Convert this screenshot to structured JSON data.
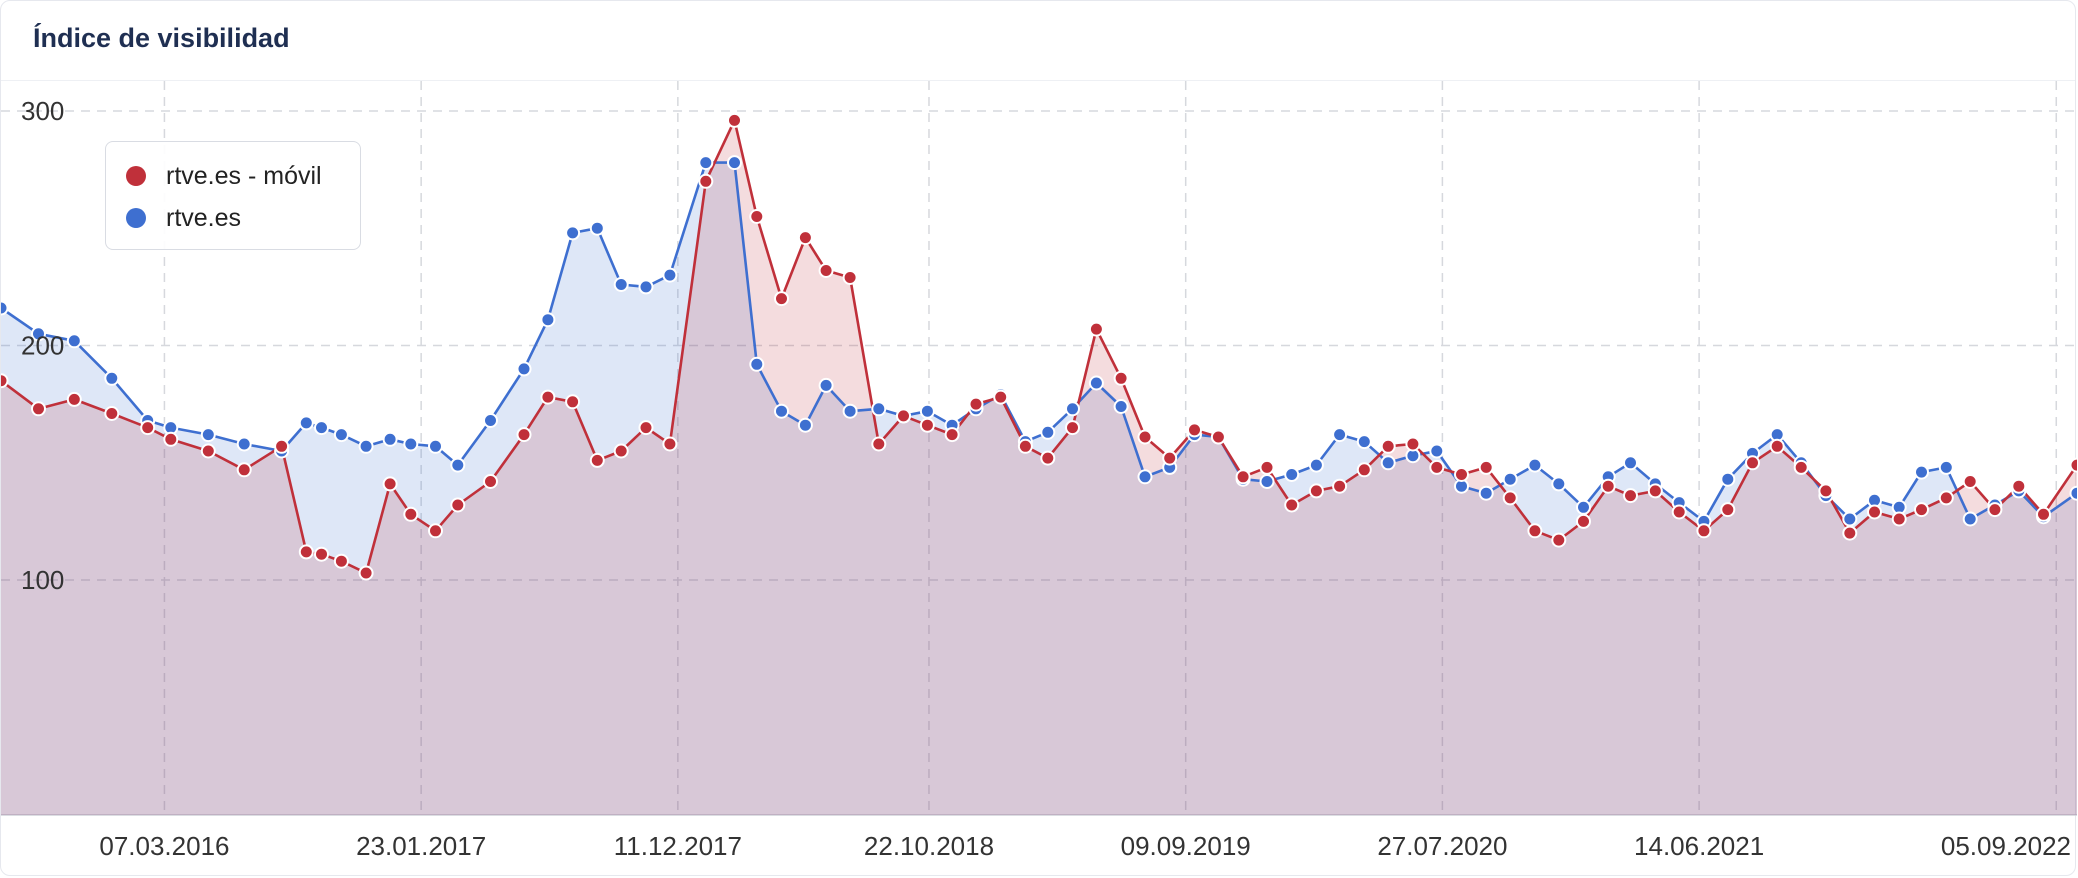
{
  "card": {
    "title": "Índice de visibilidad"
  },
  "colors": {
    "mobile": "#c0303a",
    "desktop": "#3e6fd0"
  },
  "legend": {
    "items": [
      {
        "label": "rtve.es - móvil",
        "color": "#c0303a"
      },
      {
        "label": "rtve.es",
        "color": "#3e6fd0"
      }
    ]
  },
  "chart_data": {
    "type": "area",
    "xlabel": "",
    "ylabel": "",
    "x_range": [
      "2015-08-15",
      "2022-10-01"
    ],
    "xticks": [
      "2016-03-07",
      "2017-01-23",
      "2017-12-11",
      "2018-10-22",
      "2019-09-09",
      "2020-07-27",
      "2021-06-14",
      "2022-09-05"
    ],
    "xtick_labels": [
      "07.03.2016",
      "23.01.2017",
      "11.12.2017",
      "22.10.2018",
      "09.09.2019",
      "27.07.2020",
      "14.06.2021",
      "05.09.2022"
    ],
    "yticks": [
      100,
      200,
      300
    ],
    "ylim": [
      0,
      315
    ],
    "grid": true,
    "legend_position": "top-left",
    "series": [
      {
        "name": "rtve.es - móvil",
        "color": "#c0303a",
        "x": [
          "2015-08-15",
          "2015-10-01",
          "2015-11-15",
          "2016-01-01",
          "2016-02-15",
          "2016-03-15",
          "2016-05-01",
          "2016-06-15",
          "2016-08-01",
          "2016-09-01",
          "2016-09-20",
          "2016-10-15",
          "2016-11-15",
          "2016-12-15",
          "2017-01-10",
          "2017-02-10",
          "2017-03-10",
          "2017-04-20",
          "2017-06-01",
          "2017-07-01",
          "2017-08-01",
          "2017-09-01",
          "2017-10-01",
          "2017-11-01",
          "2017-12-01",
          "2018-01-15",
          "2018-02-20",
          "2018-03-20",
          "2018-04-20",
          "2018-05-20",
          "2018-06-15",
          "2018-07-15",
          "2018-08-20",
          "2018-09-20",
          "2018-10-20",
          "2018-11-20",
          "2018-12-20",
          "2019-01-20",
          "2019-02-20",
          "2019-03-20",
          "2019-04-20",
          "2019-05-20",
          "2019-06-20",
          "2019-07-20",
          "2019-08-20",
          "2019-09-20",
          "2019-10-20",
          "2019-11-20",
          "2019-12-20",
          "2020-01-20",
          "2020-02-20",
          "2020-03-20",
          "2020-04-20",
          "2020-05-20",
          "2020-06-20",
          "2020-07-20",
          "2020-08-20",
          "2020-09-20",
          "2020-10-20",
          "2020-11-20",
          "2020-12-20",
          "2021-01-20",
          "2021-02-20",
          "2021-03-20",
          "2021-04-20",
          "2021-05-20",
          "2021-06-20",
          "2021-07-20",
          "2021-08-20",
          "2021-09-20",
          "2021-10-20",
          "2021-11-20",
          "2021-12-20",
          "2022-01-20",
          "2022-02-20",
          "2022-03-20",
          "2022-04-20",
          "2022-05-20",
          "2022-06-20",
          "2022-07-20",
          "2022-08-20",
          "2022-10-01"
        ],
        "values": [
          185,
          173,
          177,
          171,
          165,
          160,
          155,
          147,
          157,
          112,
          111,
          108,
          103,
          141,
          128,
          121,
          132,
          142,
          162,
          178,
          176,
          151,
          155,
          165,
          158,
          270,
          296,
          255,
          220,
          246,
          232,
          229,
          158,
          170,
          166,
          162,
          175,
          178,
          157,
          152,
          165,
          207,
          186,
          161,
          152,
          164,
          161,
          144,
          148,
          132,
          138,
          140,
          147,
          157,
          158,
          148,
          145,
          148,
          135,
          121,
          117,
          125,
          140,
          136,
          138,
          129,
          121,
          130,
          150,
          157,
          148,
          138,
          120,
          129,
          126,
          130,
          135,
          142,
          130,
          140,
          128,
          149
        ],
        "points": [
          185,
          173,
          177,
          171,
          165,
          160,
          155,
          147,
          157,
          112,
          111,
          108,
          103,
          141,
          128,
          121,
          132,
          142,
          162,
          178,
          176,
          151,
          155,
          165,
          158,
          270,
          296,
          255,
          220,
          246,
          232,
          229,
          158,
          170,
          166,
          162,
          175,
          178,
          157,
          152,
          165,
          207,
          186,
          161,
          152,
          164,
          161,
          144,
          148,
          132,
          138,
          140,
          147,
          157,
          158,
          148,
          145,
          148,
          135,
          121,
          117,
          125,
          140,
          136,
          138,
          129,
          121,
          130,
          150,
          157,
          148,
          138,
          120,
          129,
          126,
          130,
          135,
          142,
          130,
          140,
          128,
          149
        ]
      },
      {
        "name": "rtve.es",
        "color": "#3e6fd0",
        "x": [
          "2015-08-15",
          "2015-10-01",
          "2015-11-15",
          "2016-01-01",
          "2016-02-15",
          "2016-03-15",
          "2016-05-01",
          "2016-06-15",
          "2016-08-01",
          "2016-09-01",
          "2016-09-20",
          "2016-10-15",
          "2016-11-15",
          "2016-12-15",
          "2017-01-10",
          "2017-02-10",
          "2017-03-10",
          "2017-04-20",
          "2017-06-01",
          "2017-07-01",
          "2017-08-01",
          "2017-09-01",
          "2017-10-01",
          "2017-11-01",
          "2017-12-01",
          "2018-01-15",
          "2018-02-20",
          "2018-03-20",
          "2018-04-20",
          "2018-05-20",
          "2018-06-15",
          "2018-07-15",
          "2018-08-20",
          "2018-09-20",
          "2018-10-20",
          "2018-11-20",
          "2018-12-20",
          "2019-01-20",
          "2019-02-20",
          "2019-03-20",
          "2019-04-20",
          "2019-05-20",
          "2019-06-20",
          "2019-07-20",
          "2019-08-20",
          "2019-09-20",
          "2019-10-20",
          "2019-11-20",
          "2019-12-20",
          "2020-01-20",
          "2020-02-20",
          "2020-03-20",
          "2020-04-20",
          "2020-05-20",
          "2020-06-20",
          "2020-07-20",
          "2020-08-20",
          "2020-09-20",
          "2020-10-20",
          "2020-11-20",
          "2020-12-20",
          "2021-01-20",
          "2021-02-20",
          "2021-03-20",
          "2021-04-20",
          "2021-05-20",
          "2021-06-20",
          "2021-07-20",
          "2021-08-20",
          "2021-09-20",
          "2021-10-20",
          "2021-11-20",
          "2021-12-20",
          "2022-01-20",
          "2022-02-20",
          "2022-03-20",
          "2022-04-20",
          "2022-05-20",
          "2022-06-20",
          "2022-07-20",
          "2022-08-20",
          "2022-10-01"
        ],
        "values": [
          216,
          205,
          202,
          186,
          168,
          165,
          162,
          158,
          155,
          167,
          165,
          162,
          157,
          160,
          158,
          157,
          149,
          168,
          190,
          211,
          248,
          250,
          226,
          225,
          230,
          278,
          278,
          192,
          172,
          166,
          183,
          172,
          173,
          170,
          172,
          166,
          173,
          179,
          159,
          163,
          173,
          184,
          174,
          144,
          148,
          162,
          161,
          143,
          142,
          145,
          149,
          162,
          159,
          150,
          153,
          155,
          140,
          137,
          143,
          149,
          141,
          131,
          144,
          150,
          141,
          133,
          125,
          143,
          154,
          162,
          150,
          136,
          126,
          134,
          131,
          146,
          148,
          126,
          132,
          138,
          127,
          137
        ],
        "points": [
          216,
          205,
          202,
          186,
          168,
          165,
          162,
          158,
          155,
          167,
          165,
          162,
          157,
          160,
          158,
          157,
          149,
          168,
          190,
          211,
          248,
          250,
          226,
          225,
          230,
          278,
          278,
          192,
          172,
          166,
          183,
          172,
          173,
          170,
          172,
          166,
          173,
          179,
          159,
          163,
          173,
          184,
          174,
          144,
          148,
          162,
          161,
          143,
          142,
          145,
          149,
          162,
          159,
          150,
          153,
          155,
          140,
          137,
          143,
          149,
          141,
          131,
          144,
          150,
          141,
          133,
          125,
          143,
          154,
          162,
          150,
          136,
          126,
          134,
          131,
          146,
          148,
          126,
          132,
          138,
          127,
          137
        ]
      }
    ]
  }
}
